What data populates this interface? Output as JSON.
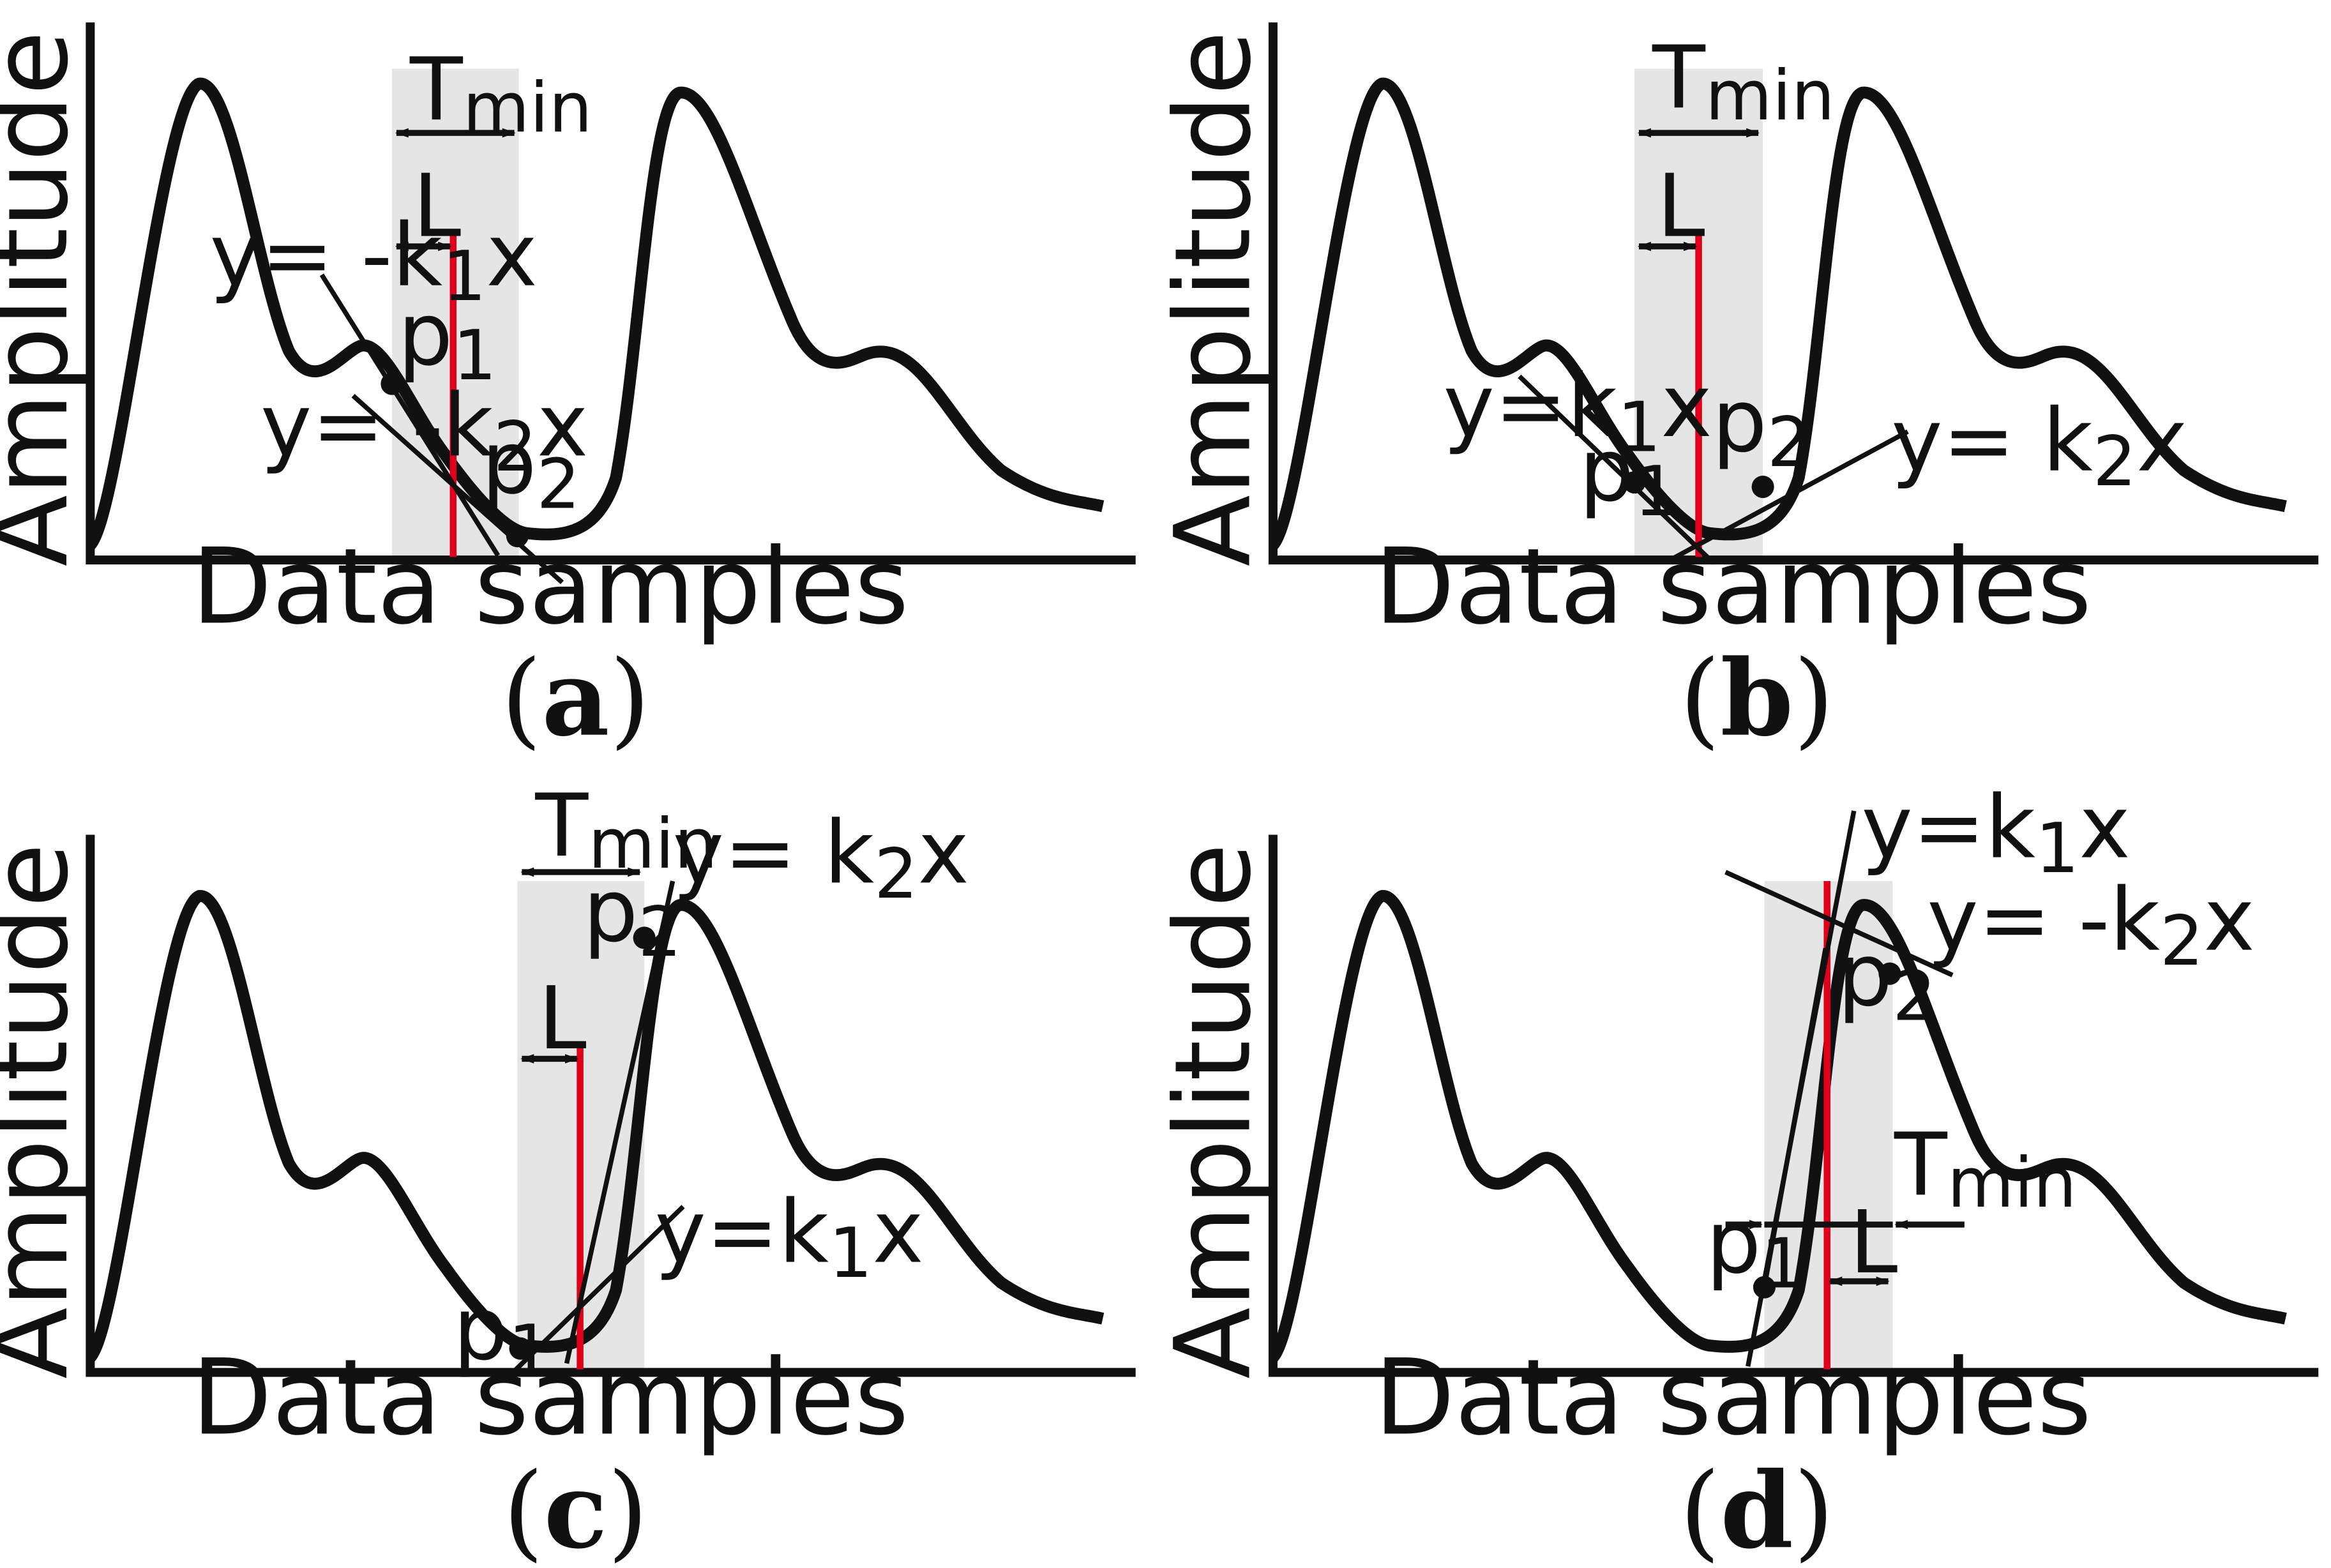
{
  "colors": {
    "ink": "#111111",
    "marker": "#e0001b",
    "window": "#e5e5e5"
  },
  "axis_labels": {
    "y": "Amplitude",
    "x": "Data samples"
  },
  "symbols": {
    "T": "T",
    "min": "min",
    "L": "L",
    "p": "p",
    "one": "1",
    "two": "2"
  },
  "panels": [
    {
      "id": "a",
      "caption": {
        "open": "(",
        "letter": "a",
        "close": ")"
      },
      "line1": {
        "prefix": "y= -k",
        "sub": "1",
        "suffix": "x"
      },
      "line2": {
        "prefix": "y= -k",
        "sub": "2",
        "suffix": "x"
      }
    },
    {
      "id": "b",
      "caption": {
        "open": "(",
        "letter": "b",
        "close": ")"
      },
      "line1": {
        "prefix": "y=k",
        "sub": "1",
        "suffix": "x"
      },
      "line2": {
        "prefix": "y= k",
        "sub": "2",
        "suffix": "x"
      }
    },
    {
      "id": "c",
      "caption": {
        "open": "(",
        "letter": "c",
        "close": ")"
      },
      "line1": {
        "prefix": "y=k",
        "sub": "1",
        "suffix": "x"
      },
      "line2": {
        "prefix": "y= k",
        "sub": "2",
        "suffix": "x"
      }
    },
    {
      "id": "d",
      "caption": {
        "open": "(",
        "letter": "d",
        "close": ")"
      },
      "line1": {
        "prefix": "y=k",
        "sub": "1",
        "suffix": "x"
      },
      "line2": {
        "prefix": "y= -k",
        "sub": "2",
        "suffix": "x"
      }
    }
  ]
}
